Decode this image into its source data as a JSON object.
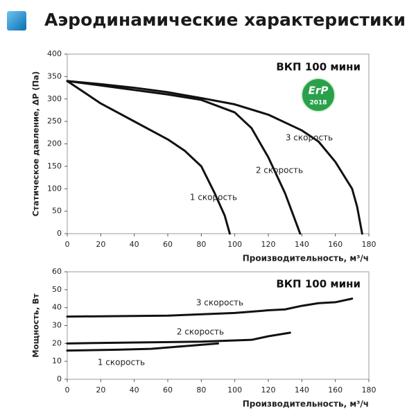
{
  "title": "Аэродинамические характеристики",
  "chart_data": [
    {
      "type": "line",
      "subtitle": "ВКП 100 мини",
      "badge": {
        "line1": "ErP",
        "line2": "2018"
      },
      "xlabel": "Производительность, м³/ч",
      "ylabel": "Статическое давление, ΔP (Па)",
      "xlim": [
        0,
        180
      ],
      "ylim": [
        0,
        400
      ],
      "xticks": [
        0,
        20,
        40,
        60,
        80,
        100,
        120,
        140,
        160,
        180
      ],
      "yticks": [
        0,
        50,
        100,
        150,
        200,
        250,
        300,
        350,
        400
      ],
      "series": [
        {
          "name": "1 скорость",
          "color": "#111111",
          "x": [
            0,
            20,
            40,
            60,
            70,
            80,
            88,
            94,
            97
          ],
          "values": [
            340,
            290,
            250,
            210,
            185,
            150,
            90,
            40,
            0
          ]
        },
        {
          "name": "2 скорость",
          "color": "#111111",
          "x": [
            0,
            20,
            40,
            60,
            80,
            100,
            110,
            120,
            130,
            136,
            139
          ],
          "values": [
            340,
            330,
            320,
            310,
            298,
            270,
            235,
            170,
            90,
            30,
            0
          ]
        },
        {
          "name": "3 скорость",
          "color": "#111111",
          "x": [
            0,
            20,
            40,
            60,
            80,
            100,
            120,
            140,
            150,
            160,
            170,
            173,
            176
          ],
          "values": [
            340,
            333,
            325,
            315,
            302,
            288,
            265,
            230,
            205,
            160,
            100,
            60,
            0
          ]
        }
      ]
    },
    {
      "type": "line",
      "subtitle": "ВКП 100 мини",
      "xlabel": "Производительность, м³/ч",
      "ylabel": "Мощность, Вт",
      "xlim": [
        0,
        180
      ],
      "ylim": [
        0,
        60
      ],
      "xticks": [
        0,
        20,
        40,
        60,
        80,
        100,
        120,
        140,
        160,
        180
      ],
      "yticks": [
        0,
        10,
        20,
        30,
        40,
        50,
        60
      ],
      "series": [
        {
          "name": "3 скорость",
          "color": "#111111",
          "x": [
            0,
            60,
            100,
            120,
            130,
            140,
            150,
            160,
            170
          ],
          "values": [
            35,
            35.5,
            37,
            38.5,
            39,
            41,
            42.5,
            43,
            45
          ]
        },
        {
          "name": "2 скорость",
          "color": "#111111",
          "x": [
            0,
            40,
            80,
            110,
            120,
            133
          ],
          "values": [
            20,
            20.5,
            21,
            22,
            24,
            26
          ]
        },
        {
          "name": "1 скорость",
          "color": "#111111",
          "x": [
            0,
            30,
            50,
            70,
            90
          ],
          "values": [
            16,
            16.5,
            17,
            18.5,
            20
          ]
        }
      ]
    }
  ]
}
